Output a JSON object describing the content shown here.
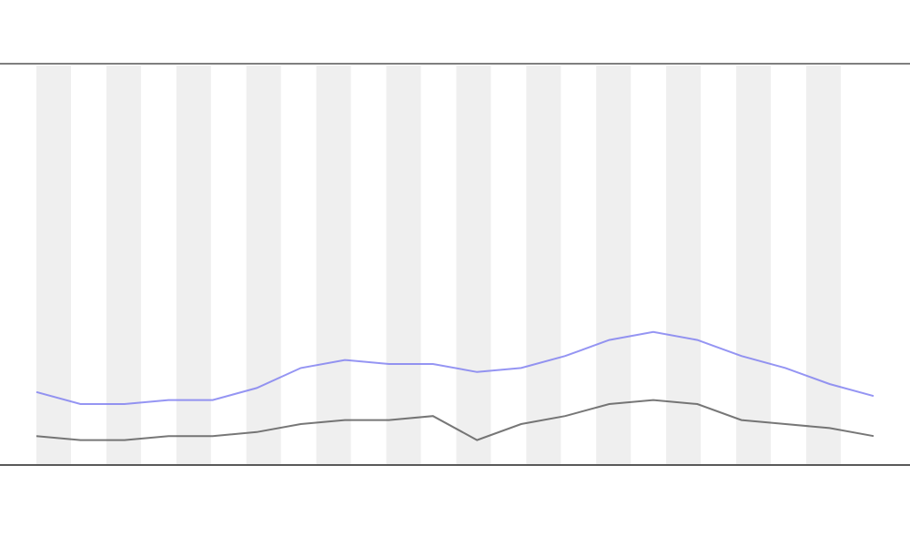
{
  "chart_data": {
    "type": "line",
    "ylim": [
      0,
      100
    ],
    "series": [
      {
        "color": "#7b7bf0",
        "values": [
          18,
          15,
          15,
          16,
          16,
          19,
          24,
          26,
          25,
          25,
          23,
          24,
          27,
          31,
          33,
          31,
          27,
          24,
          20,
          17
        ]
      },
      {
        "color": "#555555",
        "values": [
          7,
          6,
          6,
          7,
          7,
          8,
          10,
          11,
          11,
          12,
          6,
          10,
          12,
          15,
          16,
          15,
          11,
          10,
          9,
          7
        ]
      }
    ]
  }
}
